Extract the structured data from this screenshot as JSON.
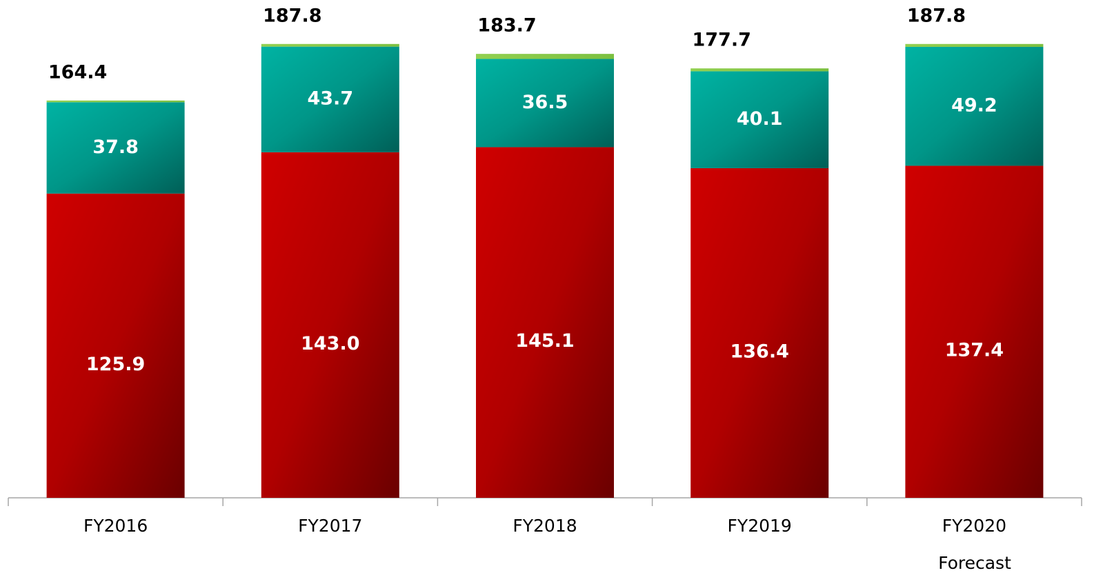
{
  "chart_data": {
    "type": "stacked_bar",
    "categories": [
      "FY2016",
      "FY2017",
      "FY2018",
      "FY2019",
      "FY2020"
    ],
    "annotation": "Forecast",
    "series": [
      {
        "color": "#c00000",
        "values": [
          125.9,
          143.0,
          145.1,
          136.4,
          137.4
        ],
        "value_labels": [
          "125.9",
          "143.0",
          "145.1",
          "136.4",
          "137.4"
        ]
      },
      {
        "color": "#00a99d",
        "values": [
          37.8,
          43.7,
          36.5,
          40.1,
          49.2
        ]
      },
      {
        "color": "#92d050",
        "values": [
          0.7,
          1.1,
          2.1,
          1.2,
          1.2
        ]
      }
    ],
    "totals": [
      164.4,
      187.8,
      183.7,
      177.7,
      187.8
    ],
    "ylim": [
      0,
      206
    ]
  }
}
